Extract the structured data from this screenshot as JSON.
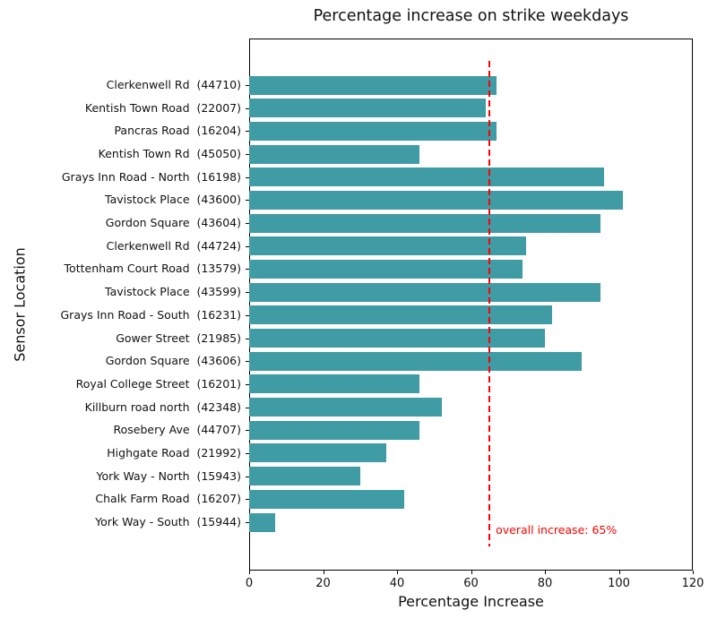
{
  "chart_data": {
    "type": "bar",
    "orientation": "horizontal",
    "title": "Percentage increase on strike weekdays",
    "xlabel": "Percentage Increase",
    "ylabel": "Sensor Location",
    "categories": [
      "Clerkenwell Rd  (44710)",
      "Kentish Town Road  (22007)",
      "Pancras Road  (16204)",
      "Kentish Town Rd  (45050)",
      "Grays Inn Road - North  (16198)",
      "Tavistock Place  (43600)",
      "Gordon Square  (43604)",
      "Clerkenwell Rd  (44724)",
      "Tottenham Court Road  (13579)",
      "Tavistock Place  (43599)",
      "Grays Inn Road - South  (16231)",
      "Gower Street  (21985)",
      "Gordon Square  (43606)",
      "Royal College Street  (16201)",
      "Killburn road north  (42348)",
      "Rosebery Ave  (44707)",
      "Highgate Road  (21992)",
      "York Way - North  (15943)",
      "Chalk Farm Road  (16207)",
      "York Way - South  (15944)"
    ],
    "values": [
      67,
      64,
      67,
      46,
      96,
      101,
      95,
      75,
      74,
      95,
      82,
      80,
      90,
      46,
      52,
      46,
      37,
      30,
      42,
      7
    ],
    "xlim": [
      0,
      120
    ],
    "xticks": [
      0,
      20,
      40,
      60,
      80,
      100,
      120
    ],
    "grid": false,
    "bar_color": "#3f9ba4",
    "reference_line": {
      "value": 65,
      "label": "overall increase: 65%",
      "color": "#ff0000",
      "style": "dashed"
    }
  }
}
